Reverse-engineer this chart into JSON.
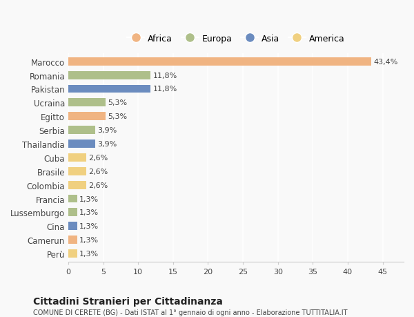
{
  "countries": [
    "Marocco",
    "Romania",
    "Pakistan",
    "Ucraina",
    "Egitto",
    "Serbia",
    "Thailandia",
    "Cuba",
    "Brasile",
    "Colombia",
    "Francia",
    "Lussemburgo",
    "Cina",
    "Camerun",
    "Perù"
  ],
  "values": [
    43.4,
    11.8,
    11.8,
    5.3,
    5.3,
    3.9,
    3.9,
    2.6,
    2.6,
    2.6,
    1.3,
    1.3,
    1.3,
    1.3,
    1.3
  ],
  "labels": [
    "43,4%",
    "11,8%",
    "11,8%",
    "5,3%",
    "5,3%",
    "3,9%",
    "3,9%",
    "2,6%",
    "2,6%",
    "2,6%",
    "1,3%",
    "1,3%",
    "1,3%",
    "1,3%",
    "1,3%"
  ],
  "continents": [
    "Africa",
    "Europa",
    "Asia",
    "Europa",
    "Africa",
    "Europa",
    "Asia",
    "America",
    "America",
    "America",
    "Europa",
    "Europa",
    "Asia",
    "Africa",
    "America"
  ],
  "colors": {
    "Africa": "#F0B482",
    "Europa": "#AEBF8A",
    "Asia": "#6B8CBF",
    "America": "#F0D080"
  },
  "legend_order": [
    "Africa",
    "Europa",
    "Asia",
    "America"
  ],
  "legend_colors": [
    "#F0B482",
    "#AEBF8A",
    "#6B8CBF",
    "#F0D080"
  ],
  "title": "Cittadini Stranieri per Cittadinanza",
  "subtitle": "COMUNE DI CERETE (BG) - Dati ISTAT al 1° gennaio di ogni anno - Elaborazione TUTTITALIA.IT",
  "xlabel_ticks": [
    0,
    5,
    10,
    15,
    20,
    25,
    30,
    35,
    40,
    45
  ],
  "background_color": "#f9f9f9",
  "bar_height": 0.6
}
